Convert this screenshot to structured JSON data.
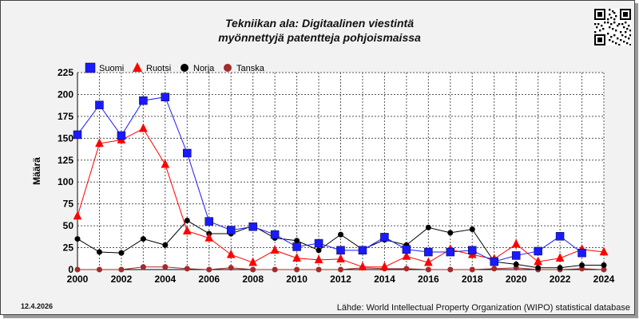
{
  "title_lines": [
    "Tekniikan ala: Digitaalinen viestintä",
    "myönnettyjä patentteja pohjoismaissa"
  ],
  "date_label": "12.4.2026",
  "source": "Lähde: World Intellectual Property Organization (WIPO) statistical database",
  "chart_data": {
    "type": "line",
    "title": "Tekniikan ala: Digitaalinen viestintä myönnettyjä patentteja pohjoismaissa",
    "xlabel": "",
    "ylabel": "Määrä",
    "x": [
      2000,
      2001,
      2002,
      2003,
      2004,
      2005,
      2006,
      2007,
      2008,
      2009,
      2010,
      2011,
      2012,
      2013,
      2014,
      2015,
      2016,
      2017,
      2018,
      2019,
      2020,
      2021,
      2022,
      2023,
      2024
    ],
    "xticks": [
      2000,
      2002,
      2004,
      2006,
      2008,
      2010,
      2012,
      2014,
      2016,
      2018,
      2020,
      2022,
      2024
    ],
    "yticks": [
      0,
      25,
      50,
      75,
      100,
      125,
      150,
      175,
      200,
      225
    ],
    "xlim": [
      2000,
      2024
    ],
    "ylim": [
      0,
      225
    ],
    "grid": true,
    "legend_position": "top-left",
    "series": [
      {
        "name": "Suomi",
        "color": "#1a1aff",
        "marker": "square",
        "values": [
          154,
          188,
          153,
          193,
          197,
          133,
          55,
          45,
          49,
          40,
          26,
          30,
          22,
          22,
          37,
          23,
          20,
          20,
          22,
          9,
          16,
          21,
          38,
          19,
          null
        ]
      },
      {
        "name": "Ruotsi",
        "color": "#ff0000",
        "marker": "triangle",
        "values": [
          61,
          144,
          148,
          161,
          120,
          44,
          36,
          17,
          8,
          22,
          13,
          11,
          12,
          3,
          3,
          15,
          8,
          23,
          17,
          12,
          29,
          9,
          13,
          23,
          20
        ]
      },
      {
        "name": "Norja",
        "color": "#000000",
        "marker": "circle",
        "values": [
          35,
          20,
          19,
          35,
          28,
          56,
          41,
          41,
          50,
          36,
          33,
          22,
          40,
          23,
          34,
          28,
          48,
          42,
          46,
          9,
          6,
          2,
          2,
          5,
          5
        ]
      },
      {
        "name": "Tanska",
        "color": "#a52a2a",
        "marker": "circle",
        "values": [
          0,
          0,
          0,
          3,
          3,
          1,
          0,
          2,
          0,
          0,
          0,
          0,
          0,
          2,
          1,
          1,
          0,
          0,
          0,
          1,
          2,
          0,
          0,
          1,
          0
        ]
      }
    ]
  }
}
